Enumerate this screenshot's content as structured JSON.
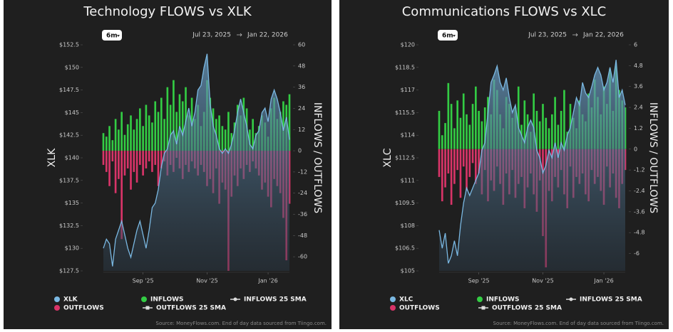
{
  "chart_data": [
    {
      "type": "flows",
      "title": "Technology FLOWS vs XLK",
      "range_button": "6m",
      "date_start": "Jul 23, 2025",
      "date_end": "Jan 22, 2026",
      "ylabel": "XLK",
      "y2label": "INFLOWS / OUTFLOWS",
      "categories": [
        null,
        null,
        null,
        null,
        null,
        null,
        null,
        null,
        null,
        null,
        null,
        null,
        null,
        "Sep '25",
        null,
        null,
        null,
        null,
        null,
        null,
        null,
        null,
        null,
        null,
        null,
        null,
        null,
        null,
        null,
        null,
        null,
        null,
        null,
        null,
        "Nov '25",
        null,
        null,
        null,
        null,
        null,
        null,
        null,
        null,
        null,
        null,
        null,
        null,
        null,
        null,
        null,
        null,
        null,
        null,
        null,
        "Jan '26",
        null,
        null,
        null,
        null,
        null,
        null,
        null
      ],
      "series": [
        {
          "name": "XLK",
          "color": "#7ab8e2",
          "values": [
            130,
            131,
            130.5,
            128,
            131,
            132,
            133,
            131.5,
            130,
            129,
            130.5,
            132,
            133,
            131.5,
            130,
            132,
            134.5,
            135,
            136.5,
            139,
            140.5,
            141,
            142.5,
            143,
            141.5,
            143.5,
            142.5,
            144,
            145.5,
            143.5,
            145,
            147.5,
            148,
            150,
            151.5,
            146,
            143.5,
            142.5,
            141,
            140.5,
            141,
            140.5,
            141.5,
            143,
            145,
            146.5,
            145,
            143.5,
            141.5,
            141,
            142.5,
            143,
            145,
            145.5,
            144,
            146.5,
            147.5,
            146.5,
            145,
            143,
            144.5,
            142
          ]
        },
        {
          "name": "INFLOWS",
          "color": "#33cc44",
          "axis": "y2",
          "values": [
            10,
            8,
            14,
            6,
            18,
            12,
            22,
            9,
            15,
            20,
            12,
            18,
            24,
            14,
            26,
            20,
            16,
            28,
            22,
            30,
            18,
            36,
            26,
            40,
            22,
            32,
            28,
            36,
            20,
            30,
            18,
            26,
            14,
            22,
            40,
            30,
            24,
            18,
            20,
            14,
            12,
            22,
            10,
            16,
            26,
            20,
            30,
            24,
            12,
            18,
            10,
            14,
            20,
            16,
            8,
            24,
            30,
            18,
            22,
            28,
            26,
            32
          ]
        },
        {
          "name": "OUTFLOWS",
          "color": "#d83468",
          "axis": "y2",
          "values": [
            -8,
            -12,
            -20,
            -6,
            -24,
            -16,
            -50,
            -14,
            -10,
            -22,
            -12,
            -18,
            -8,
            -14,
            -10,
            -6,
            -12,
            -8,
            -20,
            -10,
            -6,
            -14,
            -8,
            -12,
            -4,
            -10,
            -16,
            -8,
            -12,
            -6,
            -10,
            -14,
            -8,
            -12,
            -20,
            -16,
            -24,
            -10,
            -30,
            -18,
            -22,
            -68,
            -26,
            -14,
            -20,
            -10,
            -16,
            -8,
            -12,
            -6,
            -10,
            -14,
            -22,
            -18,
            -26,
            -32,
            -16,
            -20,
            -24,
            -38,
            -62,
            -30
          ]
        }
      ],
      "sma_series": [
        {
          "name": "INFLOWS 25 SMA"
        },
        {
          "name": "OUTFLOWS 25 SMA"
        }
      ],
      "ylim": [
        127.5,
        152.5
      ],
      "yticks": [
        {
          "value": 152.5,
          "label": "$152.5"
        },
        {
          "value": 150,
          "label": "$150"
        },
        {
          "value": 147.5,
          "label": "$147.5"
        },
        {
          "value": 145,
          "label": "$145"
        },
        {
          "value": 142.5,
          "label": "$142.5"
        },
        {
          "value": 140,
          "label": "$140"
        },
        {
          "value": 137.5,
          "label": "$137.5"
        },
        {
          "value": 135,
          "label": "$135"
        },
        {
          "value": 132.5,
          "label": "$132.5"
        },
        {
          "value": 130,
          "label": "$130"
        },
        {
          "value": 127.5,
          "label": "$127.5"
        }
      ],
      "y2lim": [
        -68,
        60
      ],
      "y2ticks": [
        60,
        48,
        36,
        24,
        12,
        0,
        -12,
        -24,
        -36,
        -48,
        -60
      ],
      "source": "Source: MoneyFlows.com. End of day data sourced from Tiingo.com."
    },
    {
      "type": "flows",
      "title": "Communications FLOWS vs XLC",
      "range_button": "6m",
      "date_start": "Jul 23, 2025",
      "date_end": "Jan 22, 2026",
      "ylabel": "XLC",
      "y2label": "INFLOWS / OUTFLOWS",
      "categories": [
        null,
        null,
        null,
        null,
        null,
        null,
        null,
        null,
        null,
        null,
        null,
        null,
        null,
        "Sep '25",
        null,
        null,
        null,
        null,
        null,
        null,
        null,
        null,
        null,
        null,
        null,
        null,
        null,
        null,
        null,
        null,
        null,
        null,
        null,
        null,
        "Nov '25",
        null,
        null,
        null,
        null,
        null,
        null,
        null,
        null,
        null,
        null,
        null,
        null,
        null,
        null,
        null,
        null,
        null,
        null,
        null,
        "Jan '26",
        null,
        null,
        null,
        null,
        null,
        null,
        null
      ],
      "series": [
        {
          "name": "XLC",
          "color": "#7ab8e2",
          "values": [
            107.7,
            106.5,
            107.5,
            105.5,
            106,
            107,
            106,
            108,
            109.5,
            110.5,
            110,
            110.5,
            111,
            111.5,
            113,
            113.5,
            115.5,
            117.5,
            118,
            118.6,
            117.5,
            117,
            117.8,
            116.5,
            115.5,
            116,
            114.5,
            114,
            113.5,
            114.5,
            115,
            114.5,
            113,
            112.5,
            111.5,
            112,
            113,
            112.5,
            113.5,
            112.5,
            113.5,
            113,
            114,
            114.5,
            115.5,
            116.5,
            116,
            117.5,
            116.8,
            116.5,
            117.2,
            118,
            118.5,
            118,
            117,
            117.5,
            118.5,
            117.5,
            119,
            116.5,
            117,
            116
          ]
        },
        {
          "name": "INFLOWS",
          "color": "#33cc44",
          "axis": "y2",
          "values": [
            2.2,
            0.8,
            1.5,
            3.8,
            2.6,
            1.2,
            2.8,
            1.8,
            3.2,
            2.0,
            1.4,
            2.6,
            3.6,
            2.2,
            1.6,
            2.4,
            3.0,
            2.0,
            4.0,
            3.4,
            2.0,
            1.2,
            3.0,
            2.6,
            1.8,
            2.4,
            3.6,
            1.4,
            2.8,
            2.0,
            1.0,
            3.2,
            2.2,
            1.6,
            2.6,
            1.8,
            1.2,
            2.0,
            3.0,
            1.4,
            2.2,
            3.4,
            1.0,
            2.6,
            1.8,
            1.2,
            2.8,
            2.0,
            1.6,
            3.2,
            2.4,
            4.0,
            3.0,
            2.0,
            3.6,
            2.6,
            4.6,
            2.2,
            4.8,
            3.4,
            2.8,
            2.4
          ]
        },
        {
          "name": "OUTFLOWS",
          "color": "#d83468",
          "axis": "y2",
          "values": [
            -1.6,
            -3.0,
            -2.2,
            -1.4,
            -3.2,
            -2.0,
            -1.2,
            -2.8,
            -1.0,
            -2.4,
            -1.6,
            -0.8,
            -2.0,
            -1.4,
            -2.6,
            -1.2,
            -3.0,
            -1.8,
            -2.4,
            -1.0,
            -2.0,
            -3.2,
            -1.4,
            -2.6,
            -1.2,
            -2.8,
            -2.0,
            -1.6,
            -3.4,
            -2.2,
            -1.4,
            -2.6,
            -3.6,
            -1.8,
            -5.0,
            -6.8,
            -2.4,
            -3.0,
            -1.6,
            -2.2,
            -1.2,
            -2.6,
            -3.4,
            -1.0,
            -2.8,
            -1.6,
            -2.0,
            -1.4,
            -2.6,
            -3.0,
            -1.2,
            -2.0,
            -1.6,
            -2.4,
            -3.2,
            -1.0,
            -2.2,
            -1.4,
            -2.8,
            -3.4,
            -2.0,
            -1.2
          ]
        }
      ],
      "sma_series": [
        {
          "name": "INFLOWS 25 SMA"
        },
        {
          "name": "OUTFLOWS 25 SMA"
        }
      ],
      "ylim": [
        105,
        120
      ],
      "yticks": [
        {
          "value": 120,
          "label": "$120"
        },
        {
          "value": 118.5,
          "label": "$118.5"
        },
        {
          "value": 117,
          "label": "$117"
        },
        {
          "value": 115.5,
          "label": "$115.5"
        },
        {
          "value": 114,
          "label": "$114"
        },
        {
          "value": 112.5,
          "label": "$112.5"
        },
        {
          "value": 111,
          "label": "$111"
        },
        {
          "value": 109.5,
          "label": "$109.5"
        },
        {
          "value": 108,
          "label": "$108"
        },
        {
          "value": 106.5,
          "label": "$106.5"
        },
        {
          "value": 105,
          "label": "$105"
        }
      ],
      "y2lim": [
        -7,
        6
      ],
      "y2ticks": [
        6,
        4.8,
        3.6,
        2.4,
        1.2,
        0,
        -1.2,
        -2.4,
        -3.6,
        -4.8,
        -6
      ],
      "source": "Source: MoneyFlows.com. End of day data sourced from Tiingo.com."
    }
  ]
}
